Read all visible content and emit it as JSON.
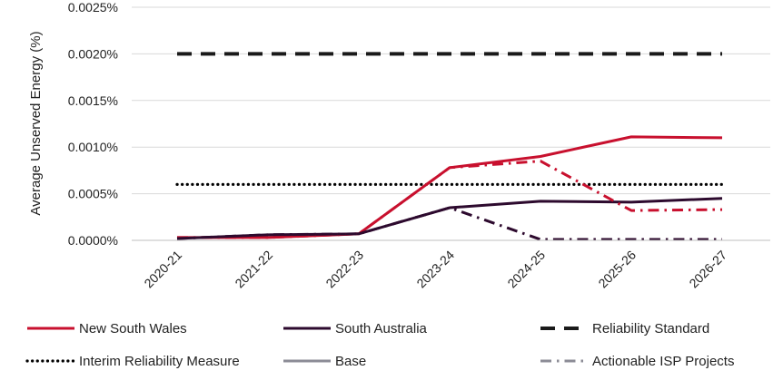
{
  "chart_data": {
    "type": "line",
    "ylabel": "Average Unserved Energy (%)",
    "xlabel": "",
    "categories": [
      "2020-21",
      "2021-22",
      "2022-23",
      "2023-24",
      "2024-25",
      "2025-26",
      "2026-27"
    ],
    "y_ticks": [
      0,
      0.0005,
      0.001,
      0.0015,
      0.002,
      0.0025
    ],
    "y_tick_labels": [
      "0.0000%",
      "0.0005%",
      "0.0010%",
      "0.0015%",
      "0.0020%",
      "0.0025%"
    ],
    "ylim": [
      0,
      0.0025
    ],
    "grid": true,
    "legend_position": "bottom",
    "series": [
      {
        "name": "New South Wales",
        "scenario": "Base",
        "color": "#c8102e",
        "dash": "solid",
        "values": [
          3e-05,
          3e-05,
          7e-05,
          0.00078,
          0.0009,
          0.00111,
          0.0011
        ]
      },
      {
        "name": "South Australia",
        "scenario": "Base",
        "color": "#2d0a2e",
        "dash": "solid",
        "values": [
          2e-05,
          6e-05,
          7e-05,
          0.00035,
          0.00042,
          0.00041,
          0.00045
        ]
      },
      {
        "name": "New South Wales",
        "scenario": "Actionable ISP Projects",
        "color": "#c8102e",
        "dash": "dashdot",
        "values": [
          3e-05,
          3e-05,
          7e-05,
          0.00078,
          0.00085,
          0.00032,
          0.00033
        ]
      },
      {
        "name": "South Australia",
        "scenario": "Actionable ISP Projects",
        "color": "#2d0a2e",
        "dash": "dashdot",
        "values": [
          2e-05,
          6e-05,
          7e-05,
          0.00035,
          1e-05,
          1e-05,
          1e-05
        ]
      },
      {
        "name": "Reliability Standard",
        "color": "#1a1a1a",
        "dash": "dashed",
        "values": [
          0.002,
          0.002,
          0.002,
          0.002,
          0.002,
          0.002,
          0.002
        ]
      },
      {
        "name": "Interim Reliability Measure",
        "color": "#000000",
        "dash": "dotted",
        "values": [
          0.0006,
          0.0006,
          0.0006,
          0.0006,
          0.0006,
          0.0006,
          0.0006
        ]
      }
    ],
    "legend": [
      {
        "label": "New South Wales",
        "color": "#c8102e",
        "dash": "solid"
      },
      {
        "label": "South Australia",
        "color": "#2d0a2e",
        "dash": "solid"
      },
      {
        "label": "Reliability Standard",
        "color": "#1a1a1a",
        "dash": "dashed"
      },
      {
        "label": "Interim Reliability Measure",
        "color": "#000000",
        "dash": "dotted"
      },
      {
        "label": "Base",
        "color": "#8c8c96",
        "dash": "solid"
      },
      {
        "label": "Actionable ISP Projects",
        "color": "#8c8c96",
        "dash": "dashdot"
      }
    ]
  }
}
